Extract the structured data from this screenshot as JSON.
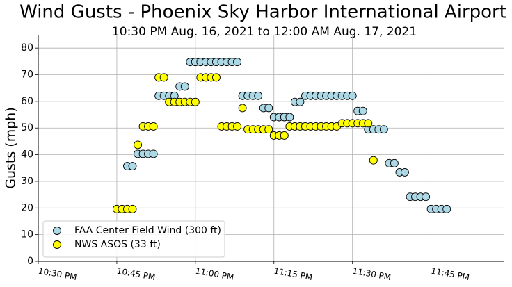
{
  "chart_data": {
    "type": "scatter",
    "title": "Wind Gusts - Phoenix Sky Harbor International Airport",
    "subtitle": "10:30 PM Aug. 16, 2021 to 12:00 AM Aug. 17, 2021",
    "y_label": "Gusts (mph)",
    "xlim": [
      "10:30 PM",
      "11:59 PM"
    ],
    "xticks": [
      "10:30 PM",
      "10:45 PM",
      "11:00 PM",
      "11:15 PM",
      "11:30 PM",
      "11:45 PM"
    ],
    "ylim": [
      0,
      85
    ],
    "yticks": [
      0,
      10,
      20,
      30,
      40,
      50,
      60,
      70,
      80
    ],
    "grid": true,
    "legend": "lower left",
    "series": [
      {
        "name": "FAA Center Field Wind (300 ft)",
        "color": "#add8e6",
        "x": [
          "10:47 PM",
          "10:48 PM",
          "10:49 PM",
          "10:50 PM",
          "10:51 PM",
          "10:52 PM",
          "10:53 PM",
          "10:54 PM",
          "10:55 PM",
          "10:56 PM",
          "10:57 PM",
          "10:58 PM",
          "10:59 PM",
          "11:00 PM",
          "11:01 PM",
          "11:02 PM",
          "11:03 PM",
          "11:04 PM",
          "11:05 PM",
          "11:06 PM",
          "11:07 PM",
          "11:08 PM",
          "11:09 PM",
          "11:10 PM",
          "11:11 PM",
          "11:12 PM",
          "11:13 PM",
          "11:14 PM",
          "11:15 PM",
          "11:16 PM",
          "11:17 PM",
          "11:18 PM",
          "11:19 PM",
          "11:20 PM",
          "11:21 PM",
          "11:22 PM",
          "11:23 PM",
          "11:24 PM",
          "11:25 PM",
          "11:26 PM",
          "11:27 PM",
          "11:28 PM",
          "11:29 PM",
          "11:30 PM",
          "11:31 PM",
          "11:32 PM",
          "11:33 PM",
          "11:34 PM",
          "11:35 PM",
          "11:36 PM",
          "11:37 PM",
          "11:38 PM",
          "11:39 PM",
          "11:40 PM",
          "11:41 PM",
          "11:42 PM",
          "11:43 PM",
          "11:44 PM",
          "11:45 PM",
          "11:46 PM",
          "11:47 PM",
          "11:48 PM"
        ],
        "values": [
          35.7,
          35.7,
          40.3,
          40.3,
          40.3,
          40.3,
          62.1,
          62.1,
          62.1,
          62.1,
          65.6,
          65.6,
          74.8,
          74.8,
          74.8,
          74.8,
          74.8,
          74.8,
          74.8,
          74.8,
          74.8,
          74.8,
          62.1,
          62.1,
          62.1,
          62.1,
          57.5,
          57.5,
          54.1,
          54.1,
          54.1,
          54.1,
          59.8,
          59.8,
          62.1,
          62.1,
          62.1,
          62.1,
          62.1,
          62.1,
          62.1,
          62.1,
          62.1,
          62.1,
          56.4,
          56.4,
          49.5,
          49.5,
          49.5,
          49.5,
          36.8,
          36.8,
          33.4,
          33.4,
          24.2,
          24.2,
          24.2,
          24.2,
          19.6,
          19.6,
          19.6,
          19.6
        ]
      },
      {
        "name": "NWS ASOS (33 ft)",
        "color": "#ffff00",
        "x": [
          "10:45 PM",
          "10:46 PM",
          "10:47 PM",
          "10:48 PM",
          "10:49 PM",
          "10:50 PM",
          "10:51 PM",
          "10:52 PM",
          "10:53 PM",
          "10:54 PM",
          "10:55 PM",
          "10:56 PM",
          "10:57 PM",
          "10:58 PM",
          "10:59 PM",
          "11:00 PM",
          "11:01 PM",
          "11:02 PM",
          "11:03 PM",
          "11:04 PM",
          "11:05 PM",
          "11:06 PM",
          "11:07 PM",
          "11:08 PM",
          "11:09 PM",
          "11:10 PM",
          "11:11 PM",
          "11:12 PM",
          "11:13 PM",
          "11:14 PM",
          "11:15 PM",
          "11:16 PM",
          "11:17 PM",
          "11:18 PM",
          "11:19 PM",
          "11:20 PM",
          "11:21 PM",
          "11:22 PM",
          "11:23 PM",
          "11:24 PM",
          "11:25 PM",
          "11:26 PM",
          "11:27 PM",
          "11:28 PM",
          "11:29 PM",
          "11:30 PM",
          "11:31 PM",
          "11:32 PM",
          "11:33 PM",
          "11:34 PM"
        ],
        "values": [
          19.6,
          19.6,
          19.6,
          19.6,
          43.7,
          50.6,
          50.6,
          50.6,
          69.0,
          69.0,
          59.8,
          59.8,
          59.8,
          59.8,
          59.8,
          59.8,
          69.0,
          69.0,
          69.0,
          69.0,
          50.6,
          50.6,
          50.6,
          50.6,
          57.5,
          49.5,
          49.5,
          49.5,
          49.5,
          49.5,
          47.2,
          47.2,
          47.2,
          50.6,
          50.6,
          50.6,
          50.6,
          50.6,
          50.6,
          50.6,
          50.6,
          50.6,
          50.6,
          51.8,
          51.8,
          51.8,
          51.8,
          51.8,
          51.8,
          37.9
        ]
      }
    ]
  }
}
